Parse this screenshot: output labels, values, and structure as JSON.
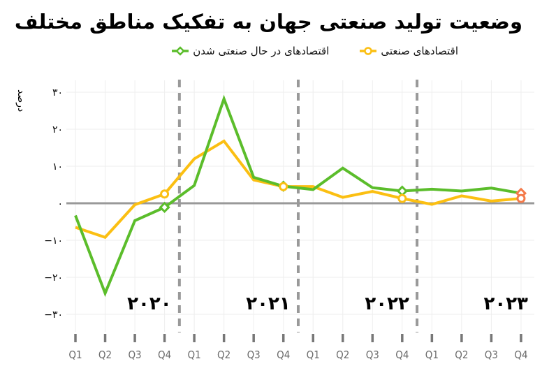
{
  "chart_data": {
    "type": "line",
    "title": "وضعیت تولید صنعتی جهان به تفکیک مناطق مختلف",
    "xlabel": "",
    "ylabel": "درصد",
    "ylim": [
      -30,
      30
    ],
    "yticks": [
      30,
      20,
      10,
      0,
      -10,
      -20,
      -30
    ],
    "ytick_labels": [
      "۳۰",
      "۲۰",
      "۱۰",
      "۰",
      "−۱۰",
      "−۲۰",
      "−۳۰"
    ],
    "grid": true,
    "legend_position": "top",
    "categories": [
      "Q1",
      "Q2",
      "Q3",
      "Q4",
      "Q1",
      "Q2",
      "Q3",
      "Q4",
      "Q1",
      "Q2",
      "Q3",
      "Q4",
      "Q1",
      "Q2",
      "Q3",
      "Q4"
    ],
    "year_groups": [
      {
        "label": "۲۰۲۰",
        "year": 2020
      },
      {
        "label": "۲۰۲۱",
        "year": 2021
      },
      {
        "label": "۲۰۲۲",
        "year": 2022
      },
      {
        "label": "۲۰۲۳",
        "year": 2023
      }
    ],
    "series": [
      {
        "name": "اقتصادهای در حال صنعتی شدن",
        "color": "#5bbd2b",
        "marker": "diamond",
        "values": [
          -3.3,
          -24.3,
          -4.7,
          -1.1,
          4.8,
          28.2,
          7.0,
          4.6,
          3.7,
          9.5,
          4.2,
          3.3,
          3.8,
          3.3,
          4.1,
          2.7
        ]
      },
      {
        "name": "اقتصادهای صنعتی",
        "color": "#fbbf12",
        "marker": "circle",
        "values": [
          -6.5,
          -9.2,
          -0.4,
          2.5,
          12.0,
          16.8,
          6.3,
          4.5,
          4.5,
          1.6,
          3.2,
          1.3,
          -0.3,
          2.0,
          0.6,
          1.3
        ]
      }
    ],
    "marker_points": [
      3,
      7,
      11,
      15
    ],
    "last_point_highlight_color": "#f47a4a",
    "colors": {
      "zero_line": "#999999",
      "grid": "#eeeeee",
      "separator": "#999999"
    }
  },
  "header": {
    "title": "وضعیت تولید صنعتی جهان به تفکیک مناطق مختلف"
  },
  "legend": {
    "items": [
      {
        "label": "اقتصادهای در حال صنعتی شدن",
        "color": "#5bbd2b",
        "marker": "diamond"
      },
      {
        "label": "اقتصادهای صنعتی",
        "color": "#fbbf12",
        "marker": "circle"
      }
    ]
  },
  "axis": {
    "ylabel": "درصد"
  }
}
